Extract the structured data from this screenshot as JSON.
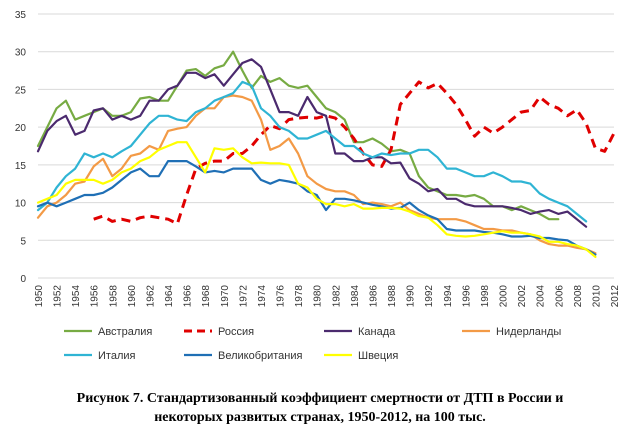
{
  "chart_data": {
    "type": "line",
    "title": "",
    "xlabel": "",
    "ylabel": "",
    "ylim": [
      0,
      35
    ],
    "y_ticks": [
      0,
      5,
      10,
      15,
      20,
      25,
      30,
      35
    ],
    "x_tick_labels": [
      "1950",
      "1952",
      "1954",
      "1956",
      "1958",
      "1960",
      "1962",
      "1964",
      "1966",
      "1968",
      "1970",
      "1972",
      "1974",
      "1976",
      "1978",
      "1980",
      "1982",
      "1984",
      "1986",
      "1988",
      "1990",
      "1992",
      "1994",
      "1996",
      "1998",
      "2000",
      "2002",
      "2004",
      "2006",
      "2008",
      "2010",
      "2012"
    ],
    "grid": "horizontal",
    "legend_position": "bottom",
    "series": [
      {
        "name": "Австралия",
        "color": "#77ab43",
        "dash": "solid",
        "x": [
          1950,
          1951,
          1952,
          1953,
          1954,
          1955,
          1956,
          1957,
          1958,
          1959,
          1960,
          1961,
          1962,
          1963,
          1964,
          1965,
          1966,
          1967,
          1968,
          1969,
          1970,
          1971,
          1972,
          1973,
          1974,
          1975,
          1976,
          1977,
          1978,
          1979,
          1980,
          1981,
          1982,
          1983,
          1984,
          1985,
          1986,
          1987,
          1988,
          1989,
          1990,
          1991,
          1992,
          1993,
          1994,
          1995,
          1996,
          1997,
          1998,
          1999,
          2000,
          2001,
          2002,
          2003,
          2004,
          2005,
          2006
        ],
        "y": [
          17.5,
          20,
          22.5,
          23.5,
          21,
          21.5,
          22,
          22.5,
          21.5,
          21.5,
          22,
          23.8,
          24,
          23.5,
          23.5,
          25.5,
          27.5,
          27.7,
          26.8,
          27.8,
          28.2,
          30,
          27.5,
          25.2,
          26.8,
          26,
          26.5,
          25.5,
          25.2,
          25.5,
          24,
          22.5,
          22,
          21,
          18,
          18,
          18.5,
          17.8,
          16.8,
          17,
          16.5,
          13.5,
          12,
          11.5,
          11,
          11,
          10.8,
          11,
          10.5,
          9.5,
          9.5,
          9,
          9.5,
          9,
          8.5,
          7.8,
          7.8
        ]
      },
      {
        "name": "Россия",
        "color": "#e00000",
        "dash": "dashed",
        "x": [
          1956,
          1957,
          1958,
          1959,
          1960,
          1961,
          1962,
          1963,
          1964,
          1965,
          1966,
          1967,
          1968,
          1969,
          1970,
          1971,
          1972,
          1973,
          1974,
          1975,
          1976,
          1977,
          1978,
          1979,
          1980,
          1981,
          1982,
          1983,
          1984,
          1985,
          1986,
          1987,
          1988,
          1989,
          1990,
          1991,
          1992,
          1993,
          1994,
          1995,
          1996,
          1997,
          1998,
          1999,
          2000,
          2001,
          2002,
          2003,
          2004,
          2005,
          2006,
          2007,
          2008,
          2009,
          2010,
          2011,
          2012
        ],
        "y": [
          7.8,
          8.2,
          7.5,
          7.8,
          7.5,
          8,
          8.2,
          8,
          7.8,
          7.2,
          11,
          14.5,
          15.2,
          15.5,
          15.5,
          16.5,
          16.5,
          17.5,
          19,
          20.2,
          19.8,
          21,
          21.2,
          21.3,
          21.2,
          21.5,
          21.2,
          20,
          18.5,
          16.5,
          15,
          14.8,
          17,
          23,
          24.5,
          26,
          25.2,
          25.8,
          24.5,
          23,
          21,
          18.8,
          20,
          19.2,
          20,
          21,
          22,
          22.2,
          24,
          23,
          22.5,
          21.5,
          22.3,
          20.5,
          17.2,
          16.8,
          19.2
        ]
      },
      {
        "name": "Канада",
        "color": "#4b2a6e",
        "dash": "solid",
        "x": [
          1950,
          1951,
          1952,
          1953,
          1954,
          1955,
          1956,
          1957,
          1958,
          1959,
          1960,
          1961,
          1962,
          1963,
          1964,
          1965,
          1966,
          1967,
          1968,
          1969,
          1970,
          1971,
          1972,
          1973,
          1974,
          1975,
          1976,
          1977,
          1978,
          1979,
          1980,
          1981,
          1982,
          1983,
          1984,
          1985,
          1986,
          1987,
          1988,
          1989,
          1990,
          1991,
          1992,
          1993,
          1994,
          1995,
          1996,
          1997,
          1998,
          1999,
          2000,
          2001,
          2002,
          2003,
          2004,
          2005,
          2006,
          2007,
          2008,
          2009
        ],
        "y": [
          16.8,
          19.5,
          20.8,
          21.5,
          19,
          19.5,
          22.2,
          22.5,
          21,
          21.5,
          21,
          21.5,
          23.5,
          23.5,
          25,
          25.5,
          27.2,
          27.2,
          26.5,
          27,
          25.5,
          27,
          28.5,
          29,
          28,
          25,
          22,
          22,
          21.5,
          24,
          22,
          21.5,
          16.5,
          16.5,
          15.5,
          15.5,
          16,
          16,
          15.2,
          15.3,
          13.2,
          12.5,
          11.5,
          11.8,
          10.5,
          10.5,
          9.8,
          9.5,
          9.5,
          9.5,
          9.5,
          9.3,
          9,
          8.5,
          8.8,
          9,
          8.5,
          8.8,
          7.8,
          6.8
        ]
      },
      {
        "name": "Нидерланды",
        "color": "#f39a46",
        "dash": "solid",
        "x": [
          1950,
          1951,
          1952,
          1953,
          1954,
          1955,
          1956,
          1957,
          1958,
          1959,
          1960,
          1961,
          1962,
          1963,
          1964,
          1965,
          1966,
          1967,
          1968,
          1969,
          1970,
          1971,
          1972,
          1973,
          1974,
          1975,
          1976,
          1977,
          1978,
          1979,
          1980,
          1981,
          1982,
          1983,
          1984,
          1985,
          1986,
          1987,
          1988,
          1989,
          1990,
          1991,
          1992,
          1993,
          1994,
          1995,
          1996,
          1997,
          1998,
          1999,
          2000,
          2001,
          2002,
          2003,
          2004,
          2005,
          2006,
          2007,
          2008,
          2009,
          2010
        ],
        "y": [
          8,
          9.5,
          10,
          11,
          12.5,
          12.8,
          14.8,
          15.8,
          13.5,
          14.5,
          16.2,
          16.5,
          17.5,
          17,
          19.5,
          19.8,
          20,
          21.5,
          22.5,
          22.5,
          24,
          24.2,
          24,
          23.5,
          21,
          17,
          17.5,
          18.5,
          16.5,
          13.5,
          12.5,
          11.8,
          11.5,
          11.5,
          11,
          9.8,
          10,
          9.8,
          9.5,
          10,
          9,
          8.5,
          8,
          7.8,
          7.8,
          7.8,
          7.5,
          7,
          6.5,
          6.5,
          6.3,
          6.3,
          6,
          5.8,
          5,
          4.5,
          4.3,
          4.3,
          4,
          3.8,
          3.3
        ]
      },
      {
        "name": "Италия",
        "color": "#2fb4d4",
        "dash": "solid",
        "x": [
          1950,
          1951,
          1952,
          1953,
          1954,
          1955,
          1956,
          1957,
          1958,
          1959,
          1960,
          1961,
          1962,
          1963,
          1964,
          1965,
          1966,
          1967,
          1968,
          1969,
          1970,
          1971,
          1972,
          1973,
          1974,
          1975,
          1976,
          1977,
          1978,
          1979,
          1980,
          1981,
          1982,
          1983,
          1984,
          1985,
          1986,
          1987,
          1988,
          1989,
          1990,
          1991,
          1992,
          1993,
          1994,
          1995,
          1996,
          1997,
          1998,
          1999,
          2000,
          2001,
          2002,
          2003,
          2004,
          2005,
          2006,
          2007,
          2008,
          2009
        ],
        "y": [
          9,
          10,
          12,
          13.5,
          14.5,
          16.5,
          16,
          16.5,
          16,
          16.8,
          17.5,
          19,
          20.5,
          21.5,
          21.5,
          21,
          20.8,
          22,
          22.5,
          23.5,
          24,
          24.5,
          26,
          25.5,
          22.5,
          21.5,
          20,
          19.5,
          18.5,
          18.5,
          19,
          19.5,
          18.5,
          17.5,
          17.5,
          16.5,
          16,
          16.5,
          16.3,
          16.5,
          16.5,
          17,
          17,
          16,
          14.5,
          14.5,
          14,
          13.5,
          13.5,
          14,
          13.5,
          12.8,
          12.8,
          12.5,
          11.2,
          10.5,
          10,
          9.5,
          8.5,
          7.5
        ]
      },
      {
        "name": "Великобритания",
        "color": "#1f6fb5",
        "dash": "solid",
        "x": [
          1950,
          1951,
          1952,
          1953,
          1954,
          1955,
          1956,
          1957,
          1958,
          1959,
          1960,
          1961,
          1962,
          1963,
          1964,
          1965,
          1966,
          1967,
          1968,
          1969,
          1970,
          1971,
          1972,
          1973,
          1974,
          1975,
          1976,
          1977,
          1978,
          1979,
          1980,
          1981,
          1982,
          1983,
          1984,
          1985,
          1986,
          1987,
          1988,
          1989,
          1990,
          1991,
          1992,
          1993,
          1994,
          1995,
          1996,
          1997,
          1998,
          1999,
          2000,
          2001,
          2002,
          2003,
          2004,
          2005,
          2006,
          2007,
          2008,
          2009,
          2010
        ],
        "y": [
          9.5,
          10,
          9.5,
          10,
          10.5,
          11,
          11,
          11.3,
          12,
          13,
          14,
          14.5,
          13.5,
          13.5,
          15.5,
          15.5,
          15.5,
          14.8,
          14,
          14.2,
          14,
          14.5,
          14.5,
          14.5,
          13,
          12.5,
          13,
          12.8,
          12.5,
          11.5,
          11,
          9,
          10.5,
          10.5,
          10.3,
          10,
          9.7,
          9.5,
          9.2,
          9.3,
          10,
          9,
          8.3,
          7.8,
          6.5,
          6.3,
          6.3,
          6.3,
          6.1,
          6,
          5.8,
          5.5,
          5.5,
          5.6,
          5.3,
          5.3,
          5.1,
          5,
          4.3,
          3.8,
          3.1
        ]
      },
      {
        "name": "Швеция",
        "color": "#ffff00",
        "dash": "solid",
        "x": [
          1950,
          1951,
          1952,
          1953,
          1954,
          1955,
          1956,
          1957,
          1958,
          1959,
          1960,
          1961,
          1962,
          1963,
          1964,
          1965,
          1966,
          1967,
          1968,
          1969,
          1970,
          1971,
          1972,
          1973,
          1974,
          1975,
          1976,
          1977,
          1978,
          1979,
          1980,
          1981,
          1982,
          1983,
          1984,
          1985,
          1986,
          1987,
          1988,
          1989,
          1990,
          1991,
          1992,
          1993,
          1994,
          1995,
          1996,
          1997,
          1998,
          1999,
          2000,
          2001,
          2002,
          2003,
          2004,
          2005,
          2006,
          2007,
          2008,
          2009,
          2010
        ],
        "y": [
          10,
          10.5,
          11,
          12.5,
          13,
          13,
          13,
          12.5,
          13,
          14,
          14.5,
          15.5,
          16,
          17,
          17.5,
          18,
          18,
          16,
          14,
          17.2,
          17,
          17.2,
          16,
          15.2,
          15.3,
          15.2,
          15.2,
          15,
          12.5,
          12,
          10.5,
          9.8,
          9.8,
          9.5,
          9.8,
          9.2,
          9.2,
          9.3,
          9.3,
          9.2,
          8.8,
          8.2,
          8,
          7,
          5.8,
          5.6,
          5.5,
          5.6,
          5.8,
          6,
          6.2,
          6,
          6,
          5.8,
          5.5,
          4.8,
          4.8,
          4.5,
          4.3,
          3.8,
          2.8
        ]
      }
    ]
  },
  "caption": {
    "line1": "Рисунок 7. Стандартизованный коэффициент смертности от ДТП в России и",
    "line2": "некоторых развитых странах, 1950-2012, на 100 тыс."
  }
}
